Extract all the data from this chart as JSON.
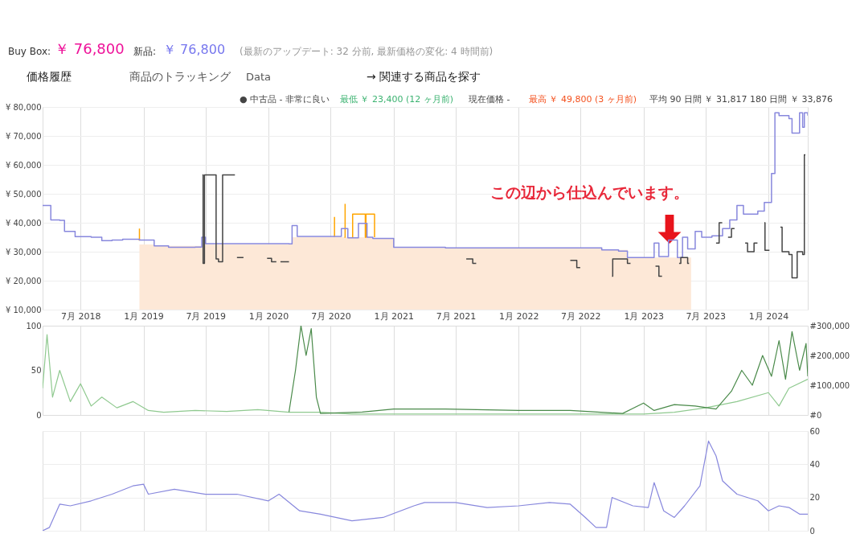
{
  "chart_data": [
    {
      "type": "other",
      "annotations": [
        "Buy Box:",
        "￥ 76,800",
        "新品:",
        "￥ 76,800",
        "(最新のアップデート: 32 分前, 最新価格の変化: 4 時間前)",
        "価格履歴",
        "商品のトラッキング",
        "Data",
        "→ 関連する商品を探す",
        "● 中古品 - 非常に良い",
        "最低 ￥ 23,400 (12 ヶ月前)",
        "現在価格 -",
        "最高 ￥ 49,800 (3 ヶ月前)",
        "平均 90 日間 ￥ 31,817  180 日間 ￥ 33,876"
      ]
    },
    {
      "type": "line",
      "grid": true,
      "xlim": [
        "2018-03-12",
        "2024-04-25"
      ],
      "ylim": [
        10000,
        80000
      ],
      "xticks": [
        {
          "value": "2018-07-01",
          "label": "7月 2018"
        },
        {
          "value": "2019-01-01",
          "label": "1月 2019"
        },
        {
          "value": "2019-07-01",
          "label": "7月 2019"
        },
        {
          "value": "2020-01-01",
          "label": "1月 2020"
        },
        {
          "value": "2020-07-01",
          "label": "7月 2020"
        },
        {
          "value": "2021-01-01",
          "label": "1月 2021"
        },
        {
          "value": "2021-07-01",
          "label": "7月 2021"
        },
        {
          "value": "2022-01-01",
          "label": "1月 2022"
        },
        {
          "value": "2022-07-01",
          "label": "7月 2022"
        },
        {
          "value": "2023-01-01",
          "label": "1月 2023"
        },
        {
          "value": "2023-07-01",
          "label": "7月 2023"
        },
        {
          "value": "2024-01-01",
          "label": "1月 2024"
        }
      ],
      "yticks": [
        {
          "value": 10000,
          "label": "¥ 10,000"
        },
        {
          "value": 20000,
          "label": "¥ 20,000"
        },
        {
          "value": 30000,
          "label": "¥ 30,000"
        },
        {
          "value": 40000,
          "label": "¥ 40,000"
        },
        {
          "value": 50000,
          "label": "¥ 50,000"
        },
        {
          "value": 60000,
          "label": "¥ 60,000"
        },
        {
          "value": 70000,
          "label": "¥ 70,000"
        },
        {
          "value": 80000,
          "label": "¥ 80,000"
        }
      ],
      "annotations": [
        "この辺から仕込んでいます。"
      ],
      "series": [
        {
          "type": "area",
          "color": "#fde8d7",
          "x": [
            "2018-12-20",
            "2019-02-01",
            "2019-02-02",
            "2019-06-20",
            "2019-06-21",
            "2020-03-10",
            "2020-03-11",
            "2020-11-01",
            "2020-12-31",
            "2021-01-01",
            "2022-09-01",
            "2022-09-02",
            "2022-11-15",
            "2022-11-16",
            "2023-05-20"
          ],
          "values": [
            32500,
            32500,
            32000,
            32000,
            32500,
            32500,
            35000,
            34500,
            34500,
            31300,
            31300,
            30600,
            30600,
            28000,
            28000
          ]
        },
        {
          "type": "step",
          "color": "#ffa500",
          "x": [
            "2018-12-18",
            "2018-12-20",
            "2018-12-23",
            "2020-07-10",
            "2020-07-12",
            "2020-07-15",
            "2020-08-10",
            "2020-08-12",
            "2020-08-15",
            "2020-09-01",
            "2020-09-03",
            "2020-09-25",
            "2020-10-10",
            "2020-10-12",
            "2020-11-05",
            "2020-11-06"
          ],
          "values": [
            34000,
            38000,
            null,
            35300,
            42000,
            null,
            35000,
            46500,
            null,
            35000,
            43000,
            43000,
            35000,
            43000,
            43000,
            35000
          ]
        },
        {
          "type": "step",
          "color": "#8888dd",
          "x": [
            "2018-03-12",
            "2018-04-05",
            "2018-05-01",
            "2018-05-15",
            "2018-06-15",
            "2018-08-01",
            "2018-09-01",
            "2018-10-01",
            "2018-11-01",
            "2018-12-20",
            "2019-01-20",
            "2019-02-01",
            "2019-03-15",
            "2019-06-01",
            "2019-06-20",
            "2019-07-01",
            "2020-03-01",
            "2020-03-10",
            "2020-03-25",
            "2020-07-10",
            "2020-08-01",
            "2020-08-20",
            "2020-09-20",
            "2020-10-15",
            "2020-11-01",
            "2021-01-01",
            "2021-06-01",
            "2022-09-01",
            "2022-10-20",
            "2022-11-15",
            "2023-02-01",
            "2023-02-15",
            "2023-03-15",
            "2023-04-10",
            "2023-04-25",
            "2023-05-10",
            "2023-06-01",
            "2023-06-20",
            "2023-07-20",
            "2023-08-20",
            "2023-09-10",
            "2023-10-01",
            "2023-10-20",
            "2023-12-01",
            "2023-12-20",
            "2024-01-10",
            "2024-01-20",
            "2024-02-01",
            "2024-03-01",
            "2024-03-10",
            "2024-04-01",
            "2024-04-10",
            "2024-04-15",
            "2024-04-25"
          ],
          "values": [
            46000,
            41000,
            40800,
            37000,
            35200,
            35000,
            33800,
            34000,
            34300,
            34000,
            34000,
            32000,
            31500,
            31600,
            35000,
            32800,
            32700,
            39000,
            35300,
            35300,
            38000,
            34800,
            39800,
            35000,
            34600,
            31500,
            31300,
            30600,
            30200,
            28000,
            33000,
            28300,
            34000,
            28000,
            35000,
            31000,
            37000,
            35000,
            35500,
            38000,
            41000,
            46000,
            43000,
            44000,
            47000,
            57000,
            78000,
            77000,
            76000,
            71000,
            78000,
            73000,
            78000,
            77000
          ]
        },
        {
          "type": "step",
          "color": "#444444",
          "x": [
            "2019-06-22",
            "2019-06-24",
            "2019-06-28",
            "2019-08-01",
            "2019-08-08",
            "2019-08-20",
            "2019-09-25",
            "2019-09-26",
            "2019-10-01",
            "2019-10-20",
            "2019-10-21",
            "2019-12-28",
            "2020-01-10",
            "2020-01-24",
            "2020-01-25",
            "2020-02-05",
            "2020-03-01",
            "2020-03-02",
            "2021-08-01",
            "2021-08-20",
            "2021-08-30",
            "2021-09-05",
            "2022-06-01",
            "2022-06-20",
            "2022-06-30",
            "2022-07-05",
            "2022-10-01",
            "2022-10-03",
            "2022-11-15",
            "2022-11-24",
            "2022-11-25",
            "2023-02-05",
            "2023-02-15",
            "2023-02-24",
            "2023-02-25",
            "2023-04-15",
            "2023-04-20",
            "2023-05-10",
            "2023-05-14",
            "2023-05-15",
            "2023-08-01",
            "2023-08-10",
            "2023-08-19",
            "2023-08-20",
            "2023-09-05",
            "2023-09-15",
            "2023-09-24",
            "2023-09-25",
            "2023-10-25",
            "2023-11-01",
            "2023-11-20",
            "2023-11-30",
            "2023-12-01",
            "2023-12-20",
            "2023-12-22",
            "2024-01-04",
            "2024-01-05",
            "2024-02-05",
            "2024-02-10",
            "2024-03-01",
            "2024-03-10",
            "2024-03-25",
            "2024-04-10",
            "2024-04-15",
            "2024-04-18"
          ],
          "values": [
            56500,
            26000,
            56500,
            27500,
            26500,
            56500,
            56500,
            null,
            28000,
            28000,
            null,
            27700,
            26500,
            26500,
            null,
            26500,
            26500,
            null,
            27500,
            26000,
            26000,
            null,
            27000,
            24500,
            24500,
            null,
            21500,
            27500,
            26000,
            26000,
            null,
            25000,
            21500,
            21500,
            null,
            26000,
            28000,
            26000,
            26000,
            null,
            33000,
            40000,
            40000,
            null,
            35000,
            38000,
            38000,
            null,
            33000,
            30000,
            33000,
            33000,
            null,
            40000,
            30500,
            30500,
            null,
            38500,
            30000,
            29000,
            21000,
            30000,
            29000,
            63500,
            63500
          ]
        }
      ]
    },
    {
      "type": "line",
      "grid": "x",
      "tick_labels": "y",
      "xlim": [
        "2018-03-12",
        "2024-04-25"
      ],
      "ylim": [
        0,
        100
      ],
      "yticks": [
        0,
        50,
        100
      ],
      "y2lim": [
        0,
        300000
      ],
      "xticks": [
        {
          "value": "2018-07-01",
          "label": null
        },
        {
          "value": "2019-01-01",
          "label": null
        },
        {
          "value": "2019-07-01",
          "label": null
        },
        {
          "value": "2020-01-01",
          "label": null
        },
        {
          "value": "2020-07-01",
          "label": null
        },
        {
          "value": "2021-01-01",
          "label": null
        },
        {
          "value": "2021-07-01",
          "label": null
        },
        {
          "value": "2022-01-01",
          "label": null
        },
        {
          "value": "2022-07-01",
          "label": null
        },
        {
          "value": "2023-01-01",
          "label": null
        },
        {
          "value": "2023-07-01",
          "label": null
        },
        {
          "value": "2024-01-01",
          "label": null
        }
      ],
      "y2ticks": [
        {
          "value": 0,
          "label": "#0"
        },
        {
          "value": 100000,
          "label": "#100,000"
        },
        {
          "value": 200000,
          "label": "#200,000"
        },
        {
          "value": 300000,
          "label": "#300,000"
        }
      ],
      "series": [
        {
          "color": "#8fc98f",
          "x": [
            "2018-03-12",
            "2018-03-25",
            "2018-04-10",
            "2018-05-01",
            "2018-06-01",
            "2018-07-01",
            "2018-08-01",
            "2018-09-01",
            "2018-10-15",
            "2018-12-01",
            "2019-01-15",
            "2019-03-01",
            "2019-06-01",
            "2019-09-01",
            "2019-12-01",
            "2020-03-01",
            "2020-06-01",
            "2020-09-01",
            "2021-01-01",
            "2022-01-01",
            "2023-01-01",
            "2023-04-01",
            "2023-07-01",
            "2023-10-01",
            "2024-01-01",
            "2024-02-01",
            "2024-03-01",
            "2024-04-25"
          ],
          "values": [
            30,
            90,
            20,
            50,
            15,
            35,
            10,
            20,
            8,
            15,
            5,
            3,
            5,
            4,
            6,
            3,
            3,
            1,
            1,
            1,
            1,
            3,
            8,
            15,
            25,
            10,
            30,
            40
          ]
        },
        {
          "color": "#4a8a4a",
          "axis": "y2",
          "x": [
            "2020-03-01",
            "2020-03-20",
            "2020-04-05",
            "2020-04-20",
            "2020-05-05",
            "2020-05-20",
            "2020-06-01",
            "2020-10-01",
            "2021-01-01",
            "2021-06-01",
            "2022-01-01",
            "2022-06-01",
            "2022-11-01",
            "2023-01-01",
            "2023-02-01",
            "2023-04-01",
            "2023-06-01",
            "2023-08-01",
            "2023-09-15",
            "2023-10-15",
            "2023-11-15",
            "2023-12-15",
            "2024-01-10",
            "2024-02-01",
            "2024-02-20",
            "2024-03-10",
            "2024-04-01",
            "2024-04-20",
            "2024-04-25"
          ],
          "values": [
            10000,
            150000,
            300000,
            200000,
            290000,
            60000,
            5000,
            10000,
            20000,
            20000,
            15000,
            15000,
            5000,
            40000,
            15000,
            35000,
            30000,
            20000,
            80000,
            150000,
            100000,
            200000,
            130000,
            250000,
            120000,
            280000,
            150000,
            240000,
            130000
          ]
        }
      ]
    },
    {
      "type": "line",
      "grid": true,
      "tick_labels": "y",
      "xlim": [
        "2018-03-12",
        "2024-04-25"
      ],
      "y2lim": [
        0,
        60
      ],
      "y2ticks": [
        0,
        20,
        40,
        60
      ],
      "xticks": [
        {
          "value": "2018-07-01",
          "label": null
        },
        {
          "value": "2019-01-01",
          "label": null
        },
        {
          "value": "2019-07-01",
          "label": null
        },
        {
          "value": "2020-01-01",
          "label": null
        },
        {
          "value": "2020-07-01",
          "label": null
        },
        {
          "value": "2021-01-01",
          "label": null
        },
        {
          "value": "2021-07-01",
          "label": null
        },
        {
          "value": "2022-01-01",
          "label": null
        },
        {
          "value": "2022-07-01",
          "label": null
        },
        {
          "value": "2023-01-01",
          "label": null
        },
        {
          "value": "2023-07-01",
          "label": null
        },
        {
          "value": "2024-01-01",
          "label": null
        }
      ],
      "series": [
        {
          "color": "#8888dd",
          "axis": "y2",
          "x": [
            "2018-03-12",
            "2018-04-01",
            "2018-05-01",
            "2018-06-01",
            "2018-08-01",
            "2018-10-01",
            "2018-12-01",
            "2019-01-01",
            "2019-01-15",
            "2019-04-01",
            "2019-07-01",
            "2019-10-01",
            "2020-01-01",
            "2020-02-01",
            "2020-04-01",
            "2020-06-01",
            "2020-09-01",
            "2020-12-01",
            "2021-03-01",
            "2021-04-01",
            "2021-07-01",
            "2021-10-01",
            "2022-01-01",
            "2022-04-01",
            "2022-06-01",
            "2022-07-15",
            "2022-08-15",
            "2022-09-15",
            "2022-10-01",
            "2022-12-01",
            "2023-01-15",
            "2023-02-01",
            "2023-03-01",
            "2023-04-01",
            "2023-05-01",
            "2023-06-15",
            "2023-07-10",
            "2023-08-01",
            "2023-08-20",
            "2023-10-01",
            "2023-12-01",
            "2024-01-01",
            "2024-02-01",
            "2024-03-01",
            "2024-04-01",
            "2024-04-25"
          ],
          "values": [
            0,
            2,
            16,
            15,
            18,
            22,
            27,
            28,
            22,
            25,
            22,
            22,
            18,
            22,
            12,
            10,
            6,
            8,
            15,
            17,
            17,
            14,
            15,
            17,
            16,
            8,
            2,
            2,
            20,
            15,
            14,
            29,
            12,
            8,
            15,
            27,
            54,
            45,
            30,
            22,
            18,
            12,
            15,
            14,
            10,
            10
          ]
        }
      ]
    }
  ]
}
